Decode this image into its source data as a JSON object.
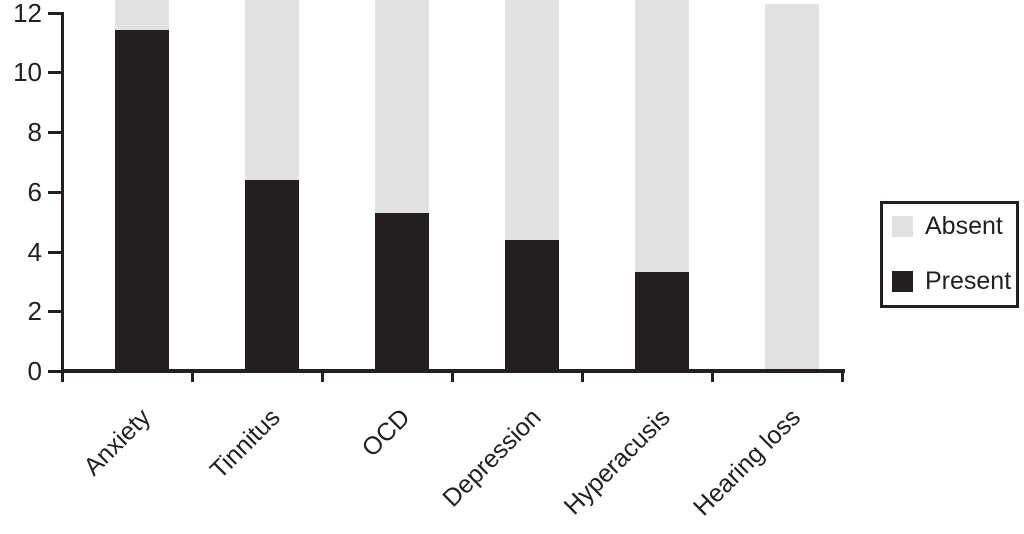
{
  "chart_data": {
    "type": "bar",
    "stacked": true,
    "title": "",
    "xlabel": "",
    "ylabel": "",
    "categories": [
      "Anxiety",
      "Tinnitus",
      "OCD",
      "Depression",
      "Hyperacusis",
      "Hearing loss"
    ],
    "series": [
      {
        "name": "Present",
        "color": "#231f20",
        "values": [
          11.4,
          6.4,
          5.3,
          4.4,
          3.3,
          0
        ]
      },
      {
        "name": "Absent",
        "color": "#e2e1e1",
        "stack_top_values": [
          null,
          null,
          null,
          null,
          null,
          12.3
        ],
        "note": "Absent segment fills from top of Present segment upward; null means the bar extends past the top edge of the cropped image; Hearing loss bar top is visible at about 12.3"
      }
    ],
    "yticks": [
      0,
      2,
      4,
      6,
      8,
      10,
      12
    ],
    "ylim_visible": [
      0,
      12.45
    ],
    "grid": false,
    "background": "#ffffff",
    "axis_color": "#231f20",
    "legend": {
      "position": "right",
      "border": true,
      "entries": [
        "Absent",
        "Present"
      ]
    }
  }
}
